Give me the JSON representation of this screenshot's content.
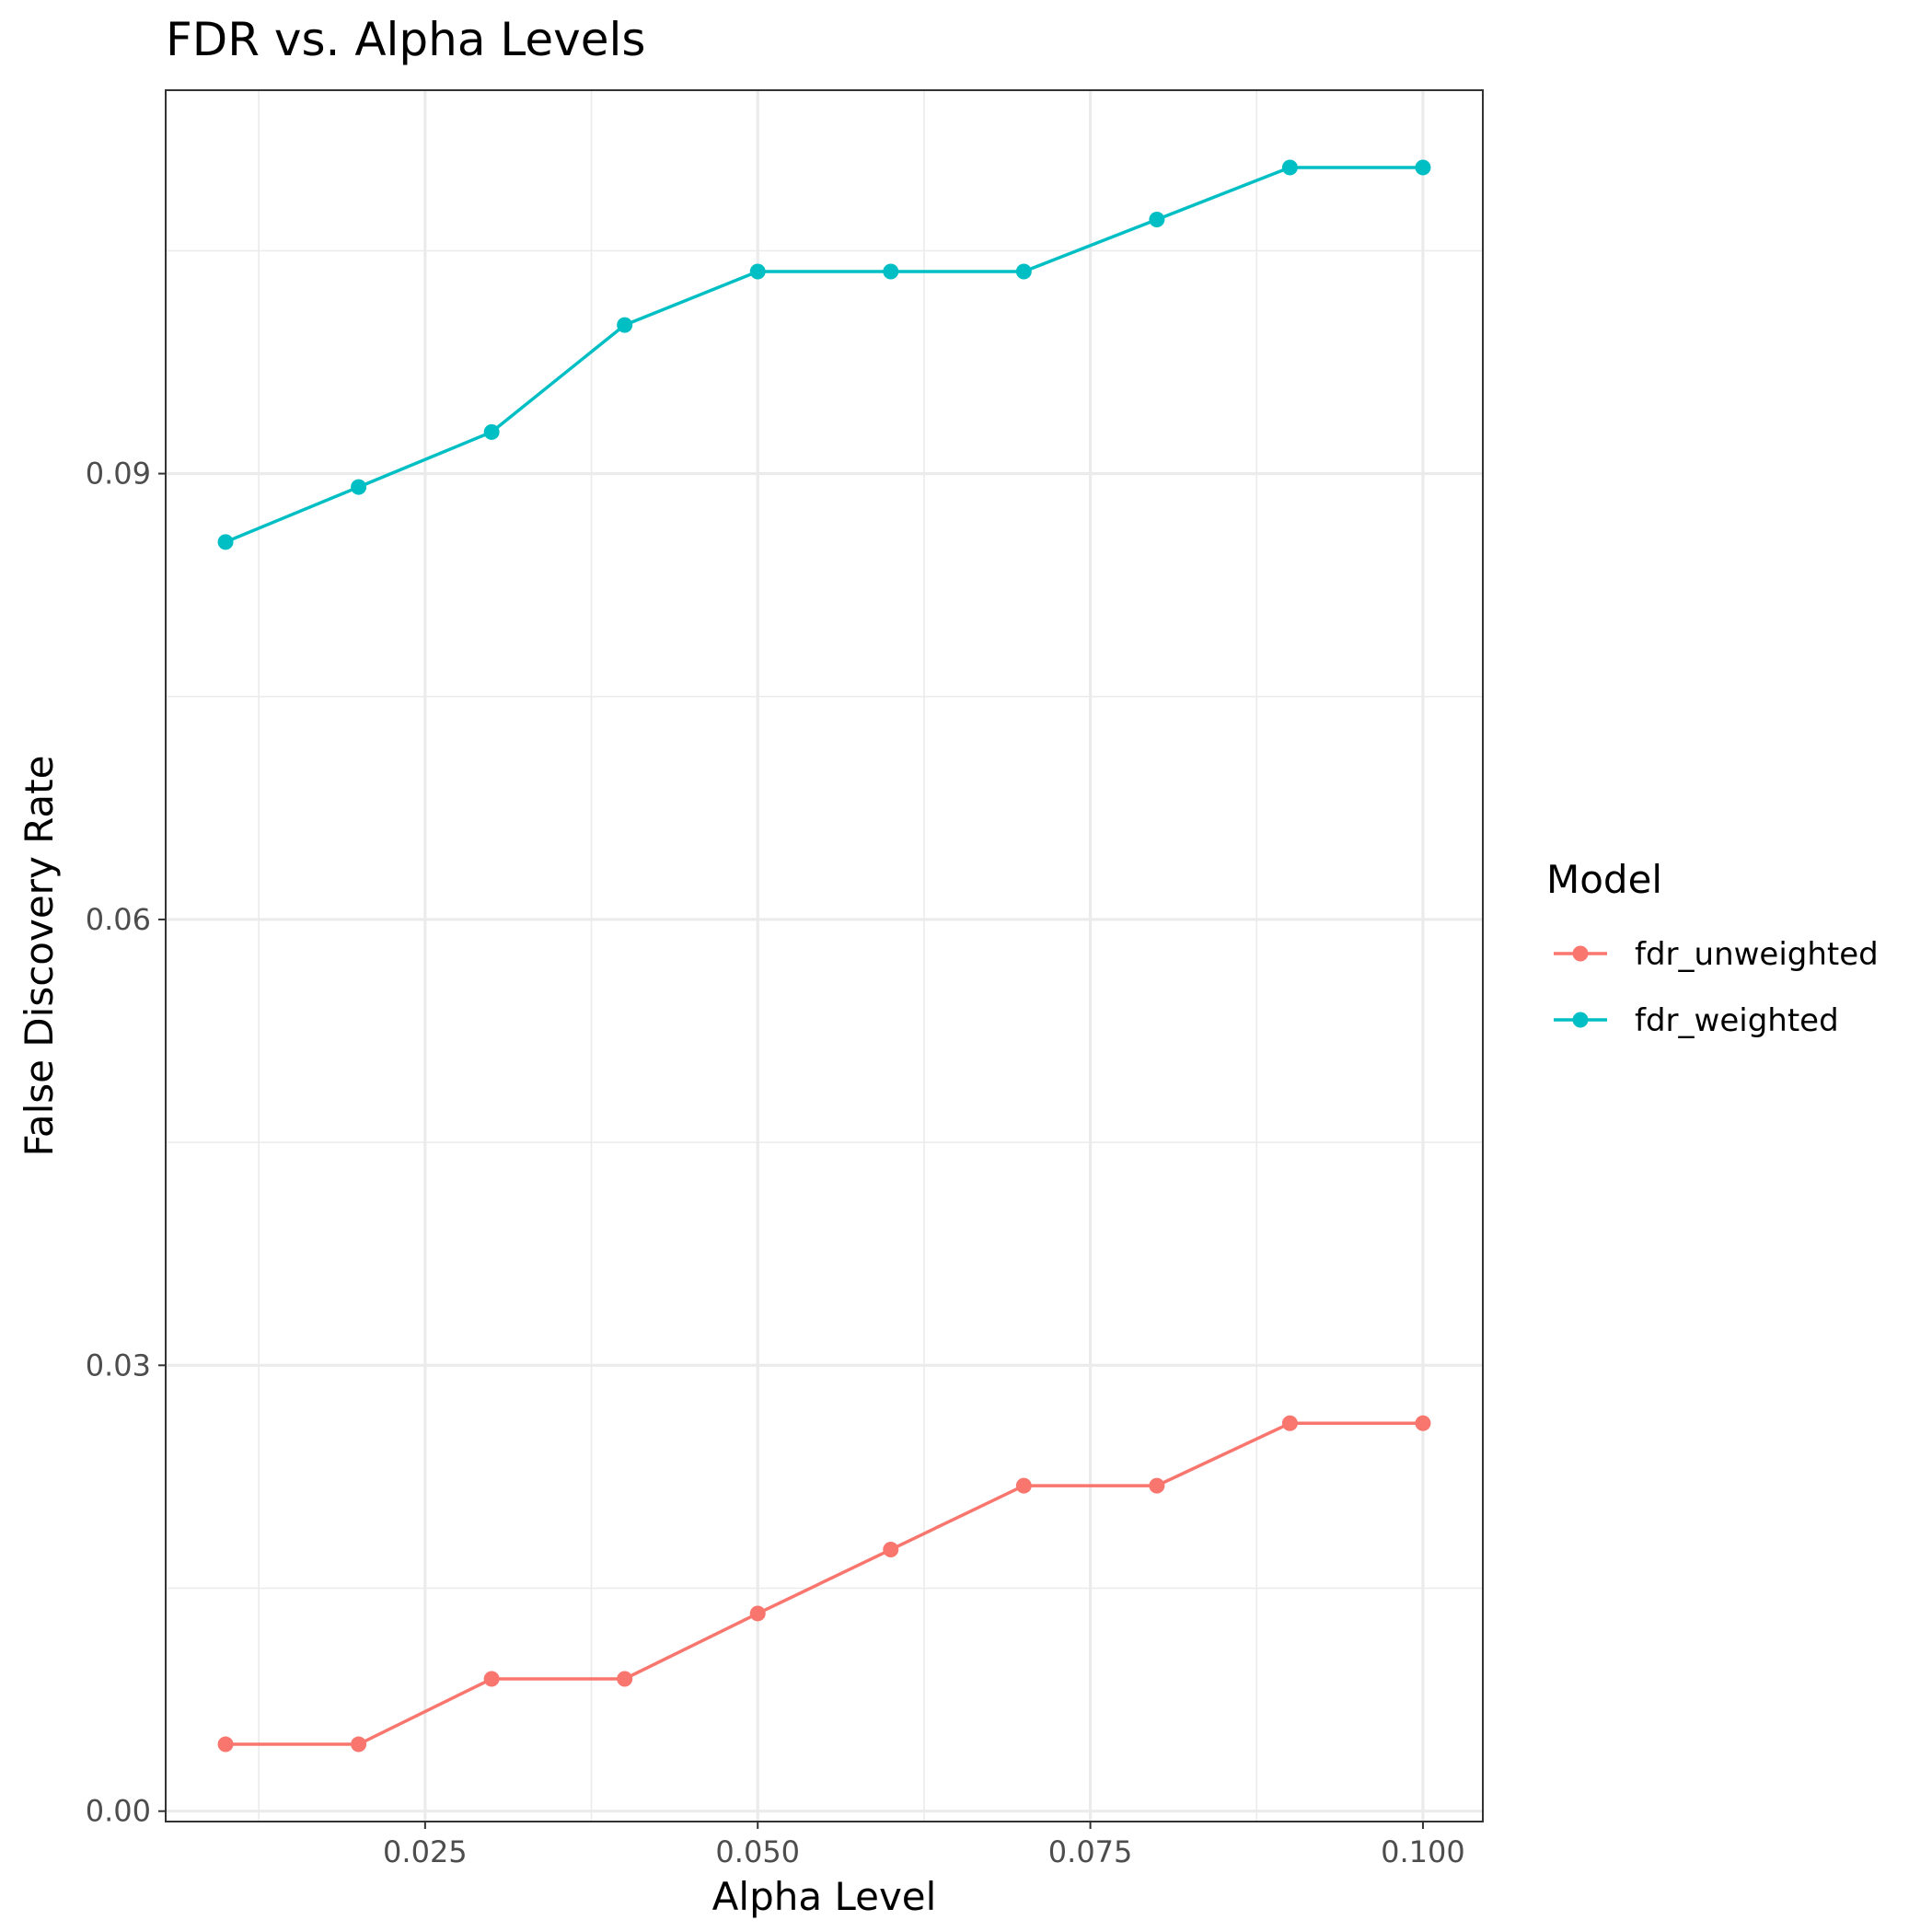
{
  "chart_data": {
    "type": "line",
    "title": "FDR vs. Alpha Levels",
    "xlabel": "Alpha Level",
    "ylabel": "False Discovery Rate",
    "xlim": [
      0.0055,
      0.1045
    ],
    "ylim": [
      -0.0007,
      0.1158
    ],
    "x_ticks": [
      0.025,
      0.05,
      0.075,
      0.1
    ],
    "x_tick_labels": [
      "0.025",
      "0.050",
      "0.075",
      "0.100"
    ],
    "x_minor": [
      0.0125,
      0.0375,
      0.0625,
      0.0875
    ],
    "y_ticks": [
      0.0,
      0.03,
      0.06,
      0.09
    ],
    "y_tick_labels": [
      "0.00",
      "0.03",
      "0.06",
      "0.09"
    ],
    "y_minor": [
      0.015,
      0.045,
      0.075,
      0.105
    ],
    "grid": true,
    "legend": {
      "title": "Model",
      "position": "right"
    },
    "x": [
      0.01,
      0.02,
      0.03,
      0.04,
      0.05,
      0.06,
      0.07,
      0.08,
      0.09,
      0.1
    ],
    "series": [
      {
        "name": "fdr_unweighted",
        "color": "#F8766D",
        "values": [
          0.0045,
          0.0045,
          0.0089,
          0.0089,
          0.0133,
          0.0176,
          0.0219,
          0.0219,
          0.0261,
          0.0261
        ]
      },
      {
        "name": "fdr_weighted",
        "color": "#00BFC4",
        "values": [
          0.0854,
          0.0891,
          0.0928,
          0.1,
          0.1036,
          0.1036,
          0.1036,
          0.1071,
          0.1106,
          0.1106
        ]
      }
    ]
  }
}
